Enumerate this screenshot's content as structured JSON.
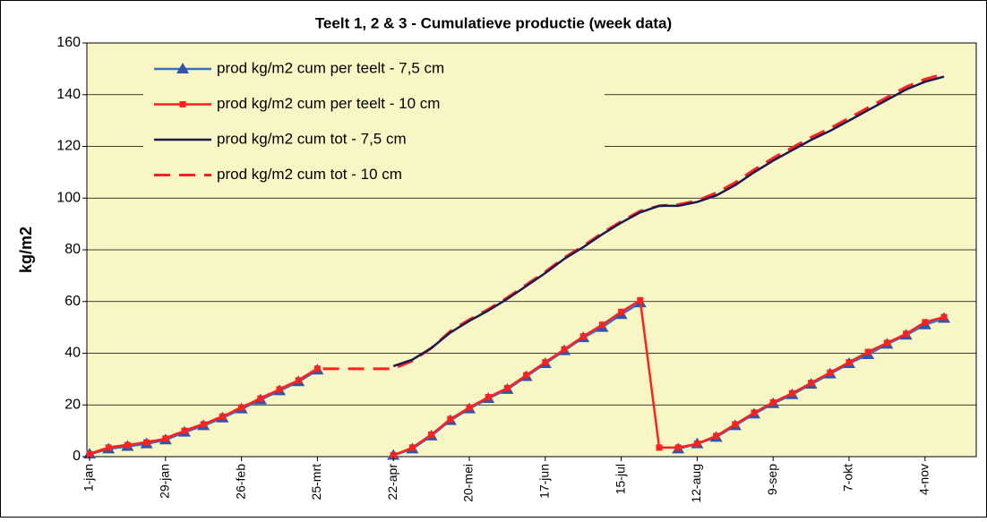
{
  "chart_data": {
    "type": "line",
    "title": "Teelt 1, 2 & 3 - Cumulatieve productie (week data)",
    "y_label": "kg/m2",
    "categories": [
      "1-jan",
      null,
      null,
      null,
      "29-jan",
      null,
      null,
      null,
      "26-feb",
      null,
      null,
      null,
      "25-mrt",
      null,
      null,
      null,
      "22-apr",
      null,
      null,
      null,
      "20-mei",
      null,
      null,
      null,
      "17-jun",
      null,
      null,
      null,
      "15-jul",
      null,
      null,
      null,
      "12-aug",
      null,
      null,
      null,
      "9-sep",
      null,
      null,
      null,
      "7-okt",
      null,
      null,
      null,
      "4-nov",
      null
    ],
    "ylim": [
      0,
      160
    ],
    "yticks": [
      0,
      20,
      40,
      60,
      80,
      100,
      120,
      140,
      160
    ],
    "grid": true,
    "legend": "upper left",
    "series": [
      {
        "name": "prod kg/m2 cum per teelt - 7,5 cm",
        "color": "#3f6fc0",
        "marker": "triangle",
        "values": [
          1,
          3,
          4,
          5,
          6.5,
          9.5,
          12,
          15,
          18.5,
          22,
          25.5,
          29,
          33.5,
          null,
          null,
          null,
          0.5,
          3,
          8,
          14,
          18.5,
          22.5,
          26,
          31,
          36,
          41,
          46,
          50,
          55,
          59.5,
          null,
          3,
          5,
          7.5,
          12,
          16.5,
          20.5,
          24,
          28,
          32,
          36,
          39.5,
          43.5,
          47,
          51,
          53.5
        ]
      },
      {
        "name": "prod kg/m2 cum per teelt - 10 cm",
        "color": "#ff2020",
        "marker": "square",
        "values": [
          1,
          3.5,
          4.5,
          5.5,
          7,
          10,
          12.5,
          15.5,
          19,
          22.5,
          26,
          29.5,
          34,
          null,
          null,
          null,
          0.5,
          3.5,
          8.5,
          14.5,
          19,
          23,
          26.5,
          31.5,
          36.5,
          41.5,
          46.5,
          51,
          56,
          60.5,
          3.5,
          3.5,
          5,
          8,
          12.5,
          17,
          21,
          24.5,
          28.5,
          32.5,
          36.5,
          40.5,
          44,
          47.5,
          52,
          54
        ]
      },
      {
        "name": "prod kg/m2 cum tot - 7,5 cm",
        "color": "#1a1a4e",
        "values": [
          1,
          3,
          4,
          5,
          6.5,
          9.5,
          12,
          15,
          18.5,
          22,
          25.5,
          29,
          33.5,
          null,
          null,
          null,
          35,
          37.5,
          42,
          48,
          52.5,
          56.5,
          61,
          66,
          71,
          76.5,
          81,
          86,
          90.5,
          94.5,
          97,
          97,
          98.5,
          101,
          105,
          110,
          114.5,
          118.5,
          122.5,
          126,
          130,
          134,
          138,
          142,
          145,
          147
        ]
      },
      {
        "name": "prod kg/m2 cum tot - 10 cm",
        "color": "#ff2020",
        "dashed": true,
        "values": [
          1,
          3.5,
          4.5,
          5.5,
          7,
          10,
          12.5,
          15.5,
          19,
          22.5,
          26,
          29.5,
          34,
          34,
          34,
          34,
          34,
          37,
          42,
          48.5,
          53,
          57,
          61.5,
          66.5,
          71.5,
          77,
          81.5,
          86.5,
          91,
          95,
          97,
          97.5,
          99,
          102,
          106,
          111,
          115.5,
          119.5,
          123.5,
          127,
          131,
          135,
          139,
          143,
          146,
          148
        ]
      }
    ]
  }
}
